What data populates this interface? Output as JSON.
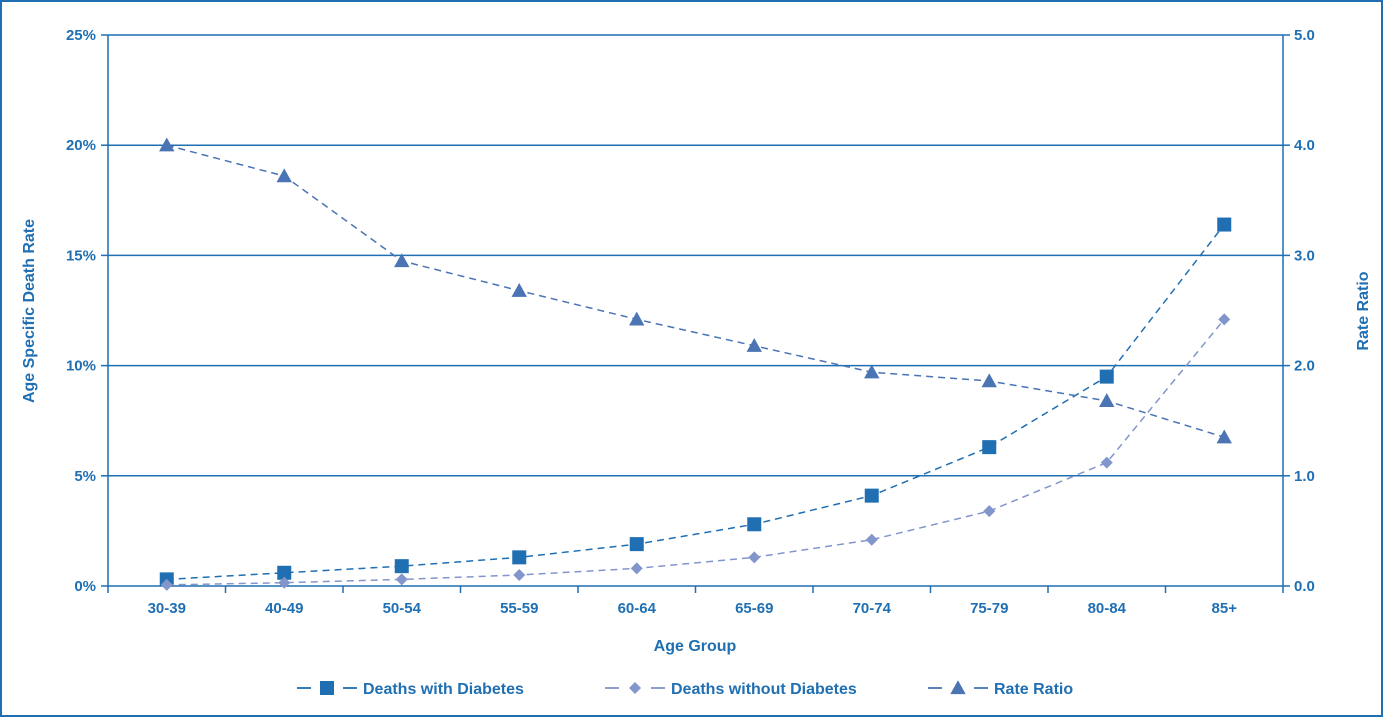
{
  "chart_data": {
    "type": "line",
    "categories": [
      "30-39",
      "40-49",
      "50-54",
      "55-59",
      "60-64",
      "65-69",
      "70-74",
      "75-79",
      "80-84",
      "85+"
    ],
    "xlabel": "Age Group",
    "ylabel": "Age Specific Death Rate",
    "y2label": "Rate Ratio",
    "ylim": [
      0,
      25
    ],
    "y2lim": [
      0,
      5
    ],
    "yticks": [
      "0%",
      "5%",
      "10%",
      "15%",
      "20%",
      "25%"
    ],
    "y2ticks": [
      "0.0",
      "1.0",
      "2.0",
      "3.0",
      "4.0",
      "5.0"
    ],
    "grid": true,
    "legend_position": "bottom",
    "series": [
      {
        "name": "Deaths with Diabetes",
        "axis": "left",
        "marker": "square",
        "color": "#1f6fb2",
        "values": [
          0.3,
          0.6,
          0.9,
          1.3,
          1.9,
          2.8,
          4.1,
          6.3,
          9.5,
          16.4
        ]
      },
      {
        "name": "Deaths without Diabetes",
        "axis": "left",
        "marker": "diamond",
        "color": "#8296cc",
        "values": [
          0.05,
          0.15,
          0.3,
          0.5,
          0.8,
          1.3,
          2.1,
          3.4,
          5.6,
          12.1
        ]
      },
      {
        "name": "Rate Ratio",
        "axis": "right",
        "marker": "triangle",
        "color": "#4a74b4",
        "values": [
          4.0,
          3.72,
          2.95,
          2.68,
          2.42,
          2.18,
          1.94,
          1.86,
          1.68,
          1.35
        ]
      }
    ]
  },
  "colors": {
    "axis": "#1f6fb2",
    "label": "#1f6fb2"
  }
}
